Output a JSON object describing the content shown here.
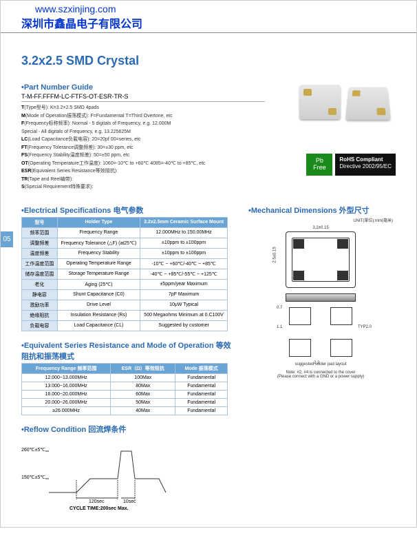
{
  "header": {
    "url": "www.szxinjing.com",
    "company": "深圳市鑫晶电子有限公司"
  },
  "page_number": "05",
  "title": "3.2x2.5 SMD Crystal",
  "part_number_guide": {
    "heading": "•Part Number Guide",
    "code": "T-M-FF.FFFM-LC-FTFS-OT-ESR-TR-S",
    "defs": [
      {
        "k": "T",
        "label": "(Type型号)",
        "v": "K=3.2×2.5 SMD 4pads"
      },
      {
        "k": "M",
        "label": "(Mode of Operation振荡模式)",
        "v": "F=Fundamental T=Third Overtone, etc"
      },
      {
        "k": "F",
        "label": "(Frequency标称频率)",
        "v": "Normal - 5 digitals of Frequency, e.g. 12.000M"
      },
      {
        "k": "",
        "label": "",
        "v": "Special - All digitals of Frequency, e.g. 13.225625M"
      },
      {
        "k": "LC",
        "label": "(Load Capacitance负载电容)",
        "v": "20=20pf 00=series, etc"
      },
      {
        "k": "FT",
        "label": "(Frequency Tolerance调整频差)",
        "v": "30=±30 ppm, etc"
      },
      {
        "k": "FS",
        "label": "(Frequency Stability温度频差)",
        "v": "50=±50 ppm, etc"
      },
      {
        "k": "OT",
        "label": "(Operating Temperature工作温度)",
        "v": "1060=-10℃ to +60℃ 4085=-40℃ to +85℃, etc"
      },
      {
        "k": "ESR",
        "label": "(Equivalent Series Resistance等效阻抗)",
        "v": ""
      },
      {
        "k": "TR",
        "label": "(Tape and Reel编带)",
        "v": ""
      },
      {
        "k": "S",
        "label": "(Special Requirement特殊要求)",
        "v": ""
      }
    ]
  },
  "badges": {
    "pb": "Pb Free",
    "rohs_title": "RoHS Compliant",
    "rohs_sub": "Directive 2002/95/EC"
  },
  "elec": {
    "heading": "•Electrical Specifications 电气参数",
    "cols": [
      "型号",
      "Holder Type",
      "3.2x2.5mm Ceramic Surface Mount"
    ],
    "rows": [
      [
        "频率范围",
        "Frequency Range",
        "12.000MHz to 150.00MHz"
      ],
      [
        "调整频差",
        "Frequency Tolerance (△F) (at25℃)",
        "±10ppm to ±100ppm"
      ],
      [
        "温度频差",
        "Frequency Stability",
        "±10ppm to ±100ppm"
      ],
      [
        "工作温度范围",
        "Operating Temperature Range",
        "-10℃ ~ +60℃/-40℃ ~ +85℃"
      ],
      [
        "储存温度范围",
        "Storage Temperature Range",
        "-40℃ ~ +85℃/-55℃ ~ +125℃"
      ],
      [
        "老化",
        "Aging (25℃)",
        "±5ppm/year Maximum"
      ],
      [
        "静电容",
        "Shunt Capacitance (C0)",
        "7pF Maximum"
      ],
      [
        "激励功率",
        "Drive Level",
        "10μW Typical"
      ],
      [
        "绝缘阻抗",
        "Insulation Resistance (Rs)",
        "500 Megaohms Minimum at 0.C100V"
      ],
      [
        "负载电容",
        "Load Capacitance (CL)",
        "Suggested by customer"
      ]
    ]
  },
  "mech": {
    "heading": "•Mechanical Dimensions 外型尺寸",
    "unit_note": "UNIT(單位):mm(毫米)",
    "top_label": "3.2±0.15",
    "side_label": "2.5±0.15",
    "pad_label": "TYP2.0",
    "bot_labels": [
      "0.7",
      "1.1",
      "2.2"
    ],
    "note1": "suggested solder pad layout",
    "note2": "Note: #2, #4 is connected to the cover",
    "note3": "(Please connect with a GND or a power supply)"
  },
  "esr": {
    "heading": "•Equivalent Series Resistance and Mode of Operation 等效阻抗和振荡模式",
    "cols": [
      "Frequency Range 频率范围",
      "ESR（Ω）等效阻抗",
      "Mode 振荡模式"
    ],
    "rows": [
      [
        "12.000~13.000MHz",
        "100Max",
        "Fundamental"
      ],
      [
        "13.000~16.000MHz",
        "80Max",
        "Fundamental"
      ],
      [
        "16.000~20.000MHz",
        "60Max",
        "Fundamental"
      ],
      [
        "20.000~26.000MHz",
        "50Max",
        "Fundamental"
      ],
      [
        "≥26.000MHz",
        "40Max",
        "Fundamental"
      ]
    ]
  },
  "reflow": {
    "heading": "•Reflow Condition 回流焊条件",
    "t_peak": "260℃±5℃",
    "t_hold": "150℃±5℃",
    "time1": "120sec",
    "time2": "10sec",
    "cycle": "CYCLE TIME:200sec Max."
  },
  "colors": {
    "blue": "#2a6ab3",
    "table_header": "#6aa4d4",
    "table_alt": "#d8e6f4"
  }
}
